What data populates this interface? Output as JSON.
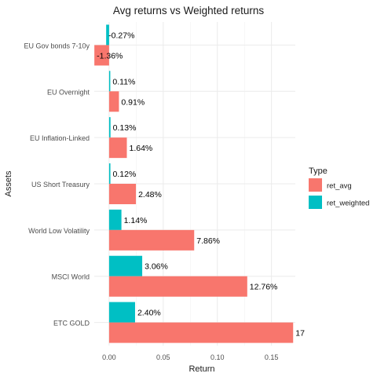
{
  "chart_data": {
    "type": "bar",
    "orientation": "horizontal",
    "title": "Avg returns vs Weighted returns",
    "xlabel": "Return",
    "ylabel": "Assets",
    "xlim": [
      -0.0137,
      0.172
    ],
    "x_ticks": [
      0.0,
      0.05,
      0.1,
      0.15
    ],
    "x_tick_labels": [
      "0.00",
      "0.05",
      "0.10",
      "0.15"
    ],
    "grid": true,
    "legend": {
      "title": "Type",
      "position": "right"
    },
    "categories": [
      "EU Gov bonds 7-10y",
      "EU Overnight",
      "EU Inflation-Linked",
      "US Short Treasury",
      "World Low Volatility",
      "MSCI World",
      "ETC GOLD"
    ],
    "series": [
      {
        "name": "ret_avg",
        "color": "#F8766D",
        "values": [
          -0.0136,
          0.0091,
          0.0164,
          0.0248,
          0.0786,
          0.1276,
          0.17
        ],
        "labels": [
          "-1.36%",
          "0.91%",
          "1.64%",
          "2.48%",
          "7.86%",
          "12.76%",
          "17"
        ]
      },
      {
        "name": "ret_weighted",
        "color": "#00BFC4",
        "values": [
          -0.0027,
          0.0011,
          0.0013,
          0.0012,
          0.0114,
          0.0306,
          0.024
        ],
        "labels": [
          "-0.27%",
          "0.11%",
          "0.13%",
          "0.12%",
          "1.14%",
          "3.06%",
          "2.40%"
        ]
      }
    ]
  }
}
